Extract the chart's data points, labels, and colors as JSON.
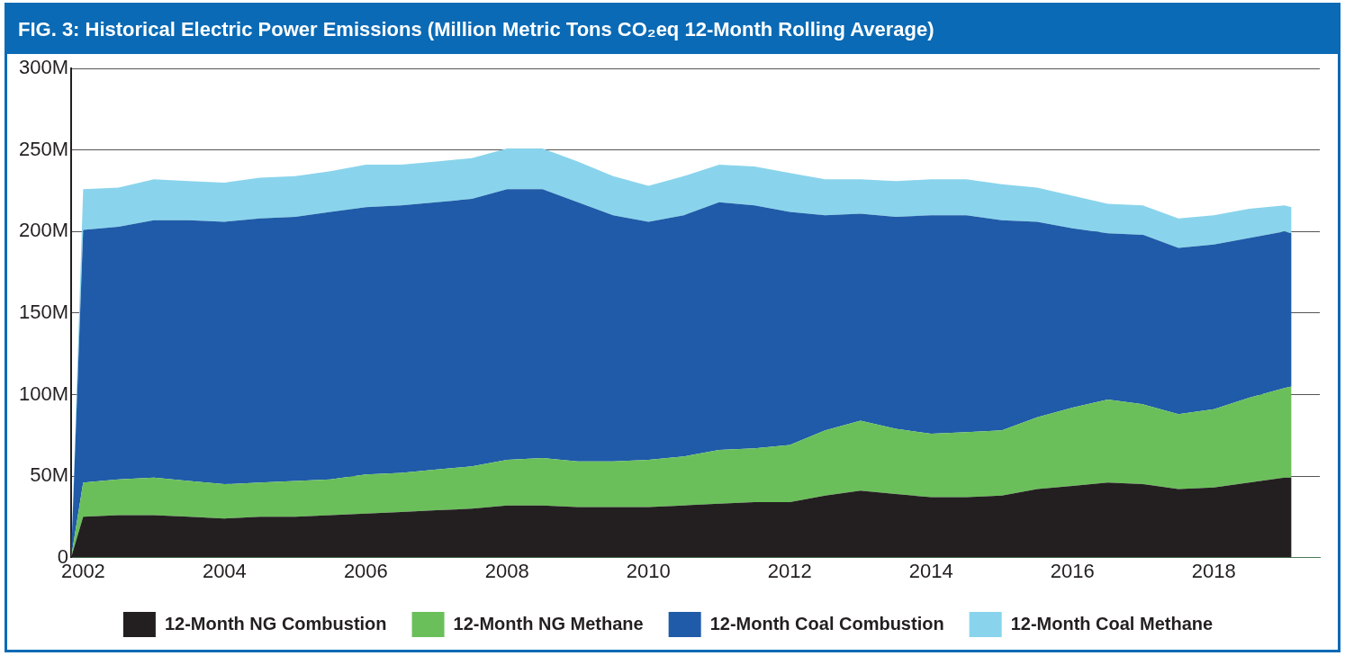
{
  "chart_data": {
    "type": "area",
    "title": "FIG. 3: Historical Electric Power Emissions (Million Metric Tons CO₂eq 12-Month Rolling Average)",
    "stacked": true,
    "x": [
      2001.83,
      2002,
      2002.5,
      2003,
      2003.5,
      2004,
      2004.5,
      2005,
      2005.5,
      2006,
      2006.5,
      2007,
      2007.5,
      2008,
      2008.5,
      2009,
      2009.5,
      2010,
      2010.5,
      2011,
      2011.5,
      2012,
      2012.5,
      2013,
      2013.5,
      2014,
      2014.5,
      2015,
      2015.5,
      2016,
      2016.5,
      2017,
      2017.5,
      2018,
      2018.5,
      2019,
      2019.1
    ],
    "series": [
      {
        "name": "12-Month NG Combustion",
        "color": "#231f20",
        "values": [
          0,
          25,
          26,
          26,
          25,
          24,
          25,
          25,
          26,
          27,
          28,
          29,
          30,
          32,
          32,
          31,
          31,
          31,
          32,
          33,
          34,
          34,
          38,
          41,
          39,
          37,
          37,
          38,
          42,
          44,
          46,
          45,
          42,
          43,
          46,
          49,
          49
        ]
      },
      {
        "name": "12-Month NG Methane",
        "color": "#6bbf5a",
        "values": [
          0,
          21,
          22,
          23,
          22,
          21,
          21,
          22,
          22,
          24,
          24,
          25,
          26,
          28,
          29,
          28,
          28,
          29,
          30,
          33,
          33,
          35,
          40,
          43,
          40,
          39,
          40,
          40,
          44,
          48,
          51,
          49,
          46,
          48,
          52,
          55,
          56
        ]
      },
      {
        "name": "12-Month Coal Combustion",
        "color": "#1f5ba8",
        "values": [
          0,
          155,
          155,
          158,
          160,
          161,
          162,
          162,
          164,
          164,
          164,
          164,
          164,
          166,
          165,
          159,
          151,
          146,
          148,
          152,
          149,
          143,
          132,
          127,
          130,
          134,
          133,
          129,
          120,
          110,
          102,
          104,
          102,
          101,
          98,
          96,
          94
        ]
      },
      {
        "name": "12-Month Coal Methane",
        "color": "#89d4ec",
        "values": [
          0,
          25,
          24,
          25,
          24,
          24,
          25,
          25,
          25,
          26,
          25,
          25,
          25,
          25,
          25,
          25,
          24,
          22,
          24,
          23,
          24,
          24,
          22,
          21,
          22,
          22,
          22,
          22,
          21,
          20,
          18,
          18,
          18,
          18,
          18,
          16,
          16
        ]
      }
    ],
    "xlim": [
      2001.83,
      2019.5
    ],
    "xticks": [
      2002,
      2004,
      2006,
      2008,
      2010,
      2012,
      2014,
      2016,
      2018
    ],
    "ylim": [
      0,
      300
    ],
    "yticks": [
      0,
      {
        "value": 50,
        "label": "50M"
      },
      {
        "value": 100,
        "label": "100M"
      },
      {
        "value": 150,
        "label": "150M"
      },
      {
        "value": 200,
        "label": "200M"
      },
      {
        "value": 250,
        "label": "250M"
      },
      {
        "value": 300,
        "label": "300M"
      }
    ],
    "grid": "y",
    "legend": "bottom",
    "marker": "none"
  }
}
